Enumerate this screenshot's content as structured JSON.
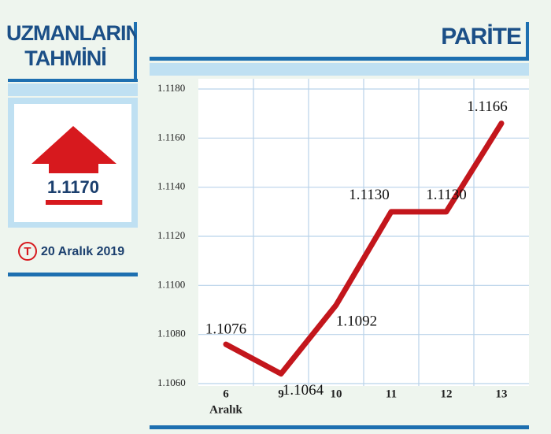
{
  "header": {
    "forecast_title": "UZMANLARIN TAHMİNİ",
    "forecast_value": "1.1170",
    "logo": "T",
    "date": "20 Aralık 2019"
  },
  "chart_data": {
    "type": "line",
    "title": "PARİTE",
    "categories": [
      "6",
      "9",
      "10",
      "11",
      "12",
      "13"
    ],
    "category_note": "Aralık",
    "series": [
      {
        "name": "PARİTE",
        "color": "#c3161c",
        "values": [
          1.1076,
          1.1064,
          1.1092,
          1.113,
          1.113,
          1.1166
        ],
        "value_labels": [
          "1.1076",
          "1.1064",
          "1.1092",
          "1.1130",
          "1.1130",
          "1.1166"
        ]
      }
    ],
    "ylim": [
      1.106,
      1.118
    ],
    "yticks": [
      {
        "value": 1.106,
        "label": "1.1060"
      },
      {
        "value": 1.108,
        "label": "1.1080"
      },
      {
        "value": 1.11,
        "label": "1.1100"
      },
      {
        "value": 1.112,
        "label": "1.1120"
      },
      {
        "value": 1.114,
        "label": "1.1140"
      },
      {
        "value": 1.116,
        "label": "1.1160"
      },
      {
        "value": 1.118,
        "label": "1.1180"
      }
    ],
    "grid": true
  }
}
